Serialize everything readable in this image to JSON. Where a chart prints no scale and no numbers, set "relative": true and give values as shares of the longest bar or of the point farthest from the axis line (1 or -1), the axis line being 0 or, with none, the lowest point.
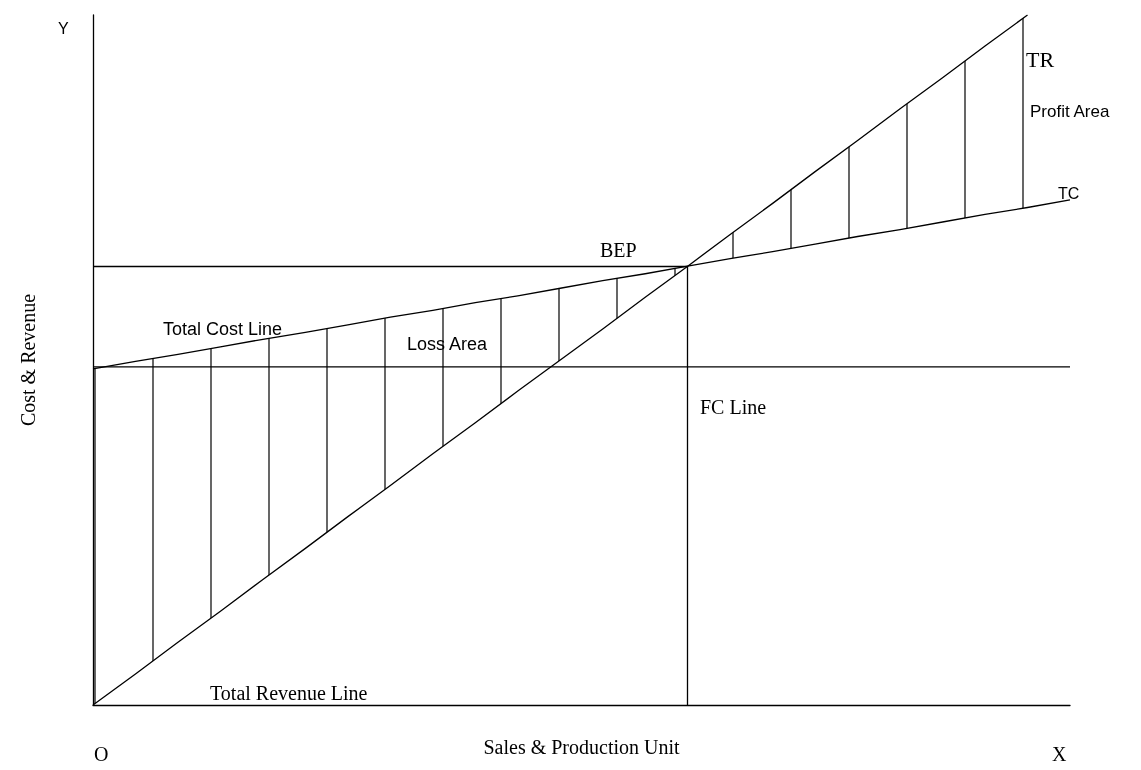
{
  "chart_data": {
    "type": "line",
    "relative": true,
    "xlabel": "Sales & Production Unit",
    "ylabel": "Cost & Revenue",
    "categories": [
      null,
      null,
      null,
      null,
      null,
      null,
      null,
      null,
      null,
      null,
      null,
      null,
      null,
      null,
      null,
      null,
      null,
      null,
      null,
      null,
      null,
      null,
      null,
      null
    ],
    "series": [
      {
        "name": "TR",
        "color": "#000000",
        "values": [
          0,
          0.045,
          0.091,
          0.136,
          0.182,
          0.227,
          0.273,
          0.318,
          0.364,
          0.409,
          0.455,
          0.5,
          0.545,
          0.591,
          0.636,
          0.682,
          0.727,
          0.773,
          0.818,
          0.864,
          0.909,
          0.955,
          1,
          null
        ],
        "lower": [
          0,
          0.045,
          0.091,
          0.136,
          0.182,
          0.227,
          0.273,
          0.318,
          0.364,
          0.409,
          0.455,
          0.5,
          0.545,
          0.591,
          0.636,
          0.647,
          0.657,
          0.668,
          0.679,
          0.689,
          0.7,
          0.711,
          0.721,
          null
        ],
        "upper": [
          0.487,
          0.498,
          0.508,
          0.519,
          0.53,
          0.54,
          0.551,
          0.562,
          0.572,
          0.583,
          0.593,
          0.604,
          0.615,
          0.625,
          0.636,
          0.682,
          0.727,
          0.773,
          0.818,
          0.864,
          0.909,
          0.955,
          1,
          null
        ]
      },
      {
        "name": "TC",
        "color": "#000000",
        "values": [
          0.487,
          0.498,
          0.508,
          0.519,
          0.53,
          0.54,
          0.551,
          0.562,
          0.572,
          0.583,
          0.593,
          0.604,
          0.615,
          0.625,
          0.636,
          0.647,
          0.657,
          0.668,
          0.679,
          0.689,
          0.7,
          0.711,
          0.721,
          0.732
        ]
      },
      {
        "name": "FC Line",
        "color": "#000000",
        "values": [
          0.49,
          0.49,
          0.49,
          0.49,
          0.49,
          0.49,
          0.49,
          0.49,
          0.49,
          0.49,
          0.49,
          0.49,
          0.49,
          0.49,
          0.49,
          0.49,
          0.49,
          0.49,
          0.49,
          0.49,
          0.49,
          0.49,
          0.49,
          0.49
        ]
      }
    ],
    "ref_lines": [
      {
        "axis": "y",
        "value": 0.636,
        "color": "#000000"
      }
    ],
    "marker": "none",
    "annotations": [
      "Y",
      "O",
      "X",
      "Total Cost Line",
      "Loss Area",
      "Profit Area",
      "Total Revenue Line",
      "BEP"
    ]
  }
}
